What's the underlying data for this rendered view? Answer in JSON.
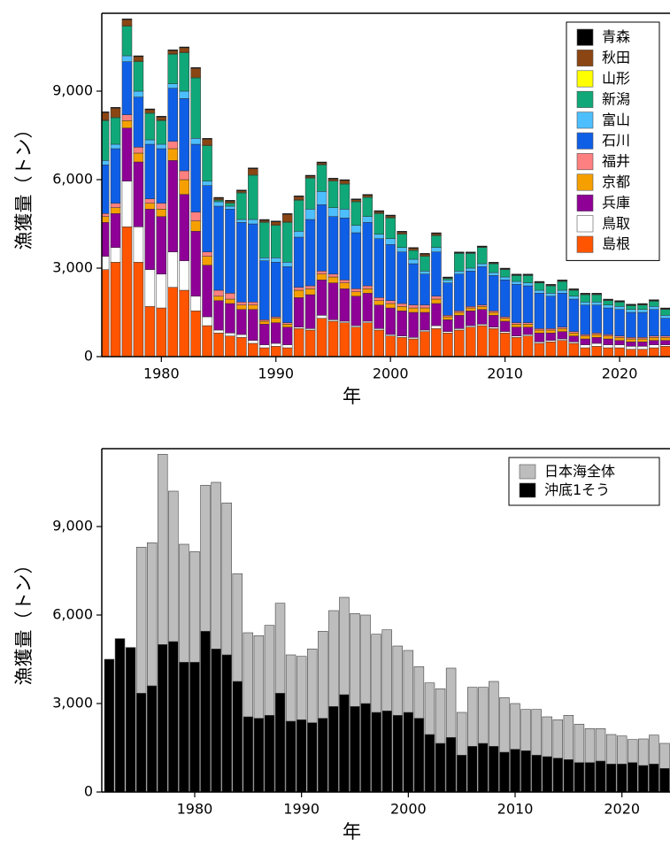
{
  "chart_data": [
    {
      "type": "stacked_bar",
      "ylabel": "漁獲量（トン）",
      "xlabel": "年",
      "legend": "upper right",
      "x": [
        1975,
        1976,
        1977,
        1978,
        1979,
        1980,
        1981,
        1982,
        1983,
        1984,
        1985,
        1986,
        1987,
        1988,
        1989,
        1990,
        1991,
        1992,
        1993,
        1994,
        1995,
        1996,
        1997,
        1998,
        1999,
        2000,
        2001,
        2002,
        2003,
        2004,
        2005,
        2006,
        2007,
        2008,
        2009,
        2010,
        2011,
        2012,
        2013,
        2014,
        2015,
        2016,
        2017,
        2018,
        2019,
        2020,
        2021,
        2022,
        2023,
        2024
      ],
      "xlim": [
        1974.8,
        2024.4
      ],
      "xticks": [
        1980,
        1990,
        2000,
        2010,
        2020
      ],
      "ylim": [
        0,
        11640
      ],
      "yticks": [
        0,
        {
          "value": 3000,
          "label": "3,000"
        },
        {
          "value": 6000,
          "label": "6,000"
        },
        {
          "value": 9000,
          "label": "9,000"
        }
      ],
      "series": [
        {
          "name": "島根",
          "color": "#ff5500",
          "values": [
            2950,
            3200,
            4400,
            3200,
            1700,
            1650,
            2350,
            2250,
            1550,
            1050,
            800,
            700,
            650,
            450,
            300,
            350,
            300,
            950,
            900,
            1300,
            1200,
            1150,
            1000,
            1150,
            900,
            700,
            650,
            600,
            850,
            950,
            800,
            900,
            1000,
            1050,
            950,
            800,
            650,
            700,
            450,
            500,
            550,
            450,
            300,
            350,
            300,
            300,
            250,
            250,
            300,
            350
          ]
        },
        {
          "name": "鳥取",
          "color": "#ffffff",
          "values": [
            450,
            500,
            1550,
            1200,
            1250,
            1150,
            1200,
            1000,
            500,
            300,
            100,
            100,
            100,
            100,
            100,
            100,
            100,
            50,
            50,
            100,
            50,
            50,
            50,
            50,
            50,
            50,
            50,
            50,
            50,
            100,
            50,
            50,
            50,
            50,
            50,
            50,
            50,
            50,
            50,
            50,
            50,
            50,
            100,
            100,
            100,
            100,
            100,
            100,
            100,
            50
          ]
        },
        {
          "name": "兵庫",
          "color": "#8e0096",
          "values": [
            1150,
            1150,
            1800,
            2200,
            2050,
            1950,
            3100,
            2250,
            2200,
            1750,
            1000,
            1000,
            850,
            1050,
            700,
            700,
            600,
            1000,
            1150,
            1200,
            1250,
            1100,
            1000,
            950,
            800,
            900,
            850,
            850,
            600,
            750,
            400,
            450,
            500,
            500,
            400,
            350,
            300,
            250,
            300,
            250,
            250,
            200,
            200,
            200,
            200,
            150,
            150,
            150,
            150,
            150
          ]
        },
        {
          "name": "京都",
          "color": "#f5a000",
          "values": [
            200,
            200,
            250,
            300,
            200,
            250,
            400,
            500,
            350,
            300,
            150,
            150,
            150,
            150,
            100,
            150,
            100,
            250,
            200,
            200,
            200,
            200,
            150,
            150,
            150,
            150,
            150,
            150,
            150,
            150,
            100,
            100,
            100,
            100,
            100,
            100,
            100,
            100,
            100,
            100,
            100,
            100,
            100,
            100,
            100,
            100,
            100,
            100,
            100,
            100
          ]
        },
        {
          "name": "福井",
          "color": "#ff8080",
          "values": [
            100,
            150,
            200,
            200,
            150,
            200,
            250,
            300,
            300,
            150,
            200,
            200,
            100,
            100,
            50,
            50,
            50,
            100,
            100,
            100,
            100,
            100,
            100,
            100,
            100,
            100,
            100,
            100,
            100,
            100,
            50,
            50,
            50,
            50,
            50,
            50,
            50,
            50,
            50,
            50,
            50,
            50,
            50,
            50,
            50,
            50,
            50,
            50,
            50,
            50
          ]
        },
        {
          "name": "石川",
          "color": "#0f5fe6",
          "values": [
            1650,
            1850,
            1800,
            1700,
            1850,
            1850,
            1800,
            2450,
            2300,
            2250,
            2850,
            2850,
            2700,
            2650,
            2000,
            1850,
            1900,
            1700,
            2250,
            2250,
            1950,
            2100,
            1900,
            2150,
            2000,
            1900,
            1750,
            1400,
            1050,
            1500,
            1100,
            1250,
            1200,
            1300,
            1200,
            1250,
            1300,
            1250,
            1200,
            1100,
            1150,
            1100,
            1000,
            950,
            900,
            900,
            850,
            850,
            900,
            600
          ]
        },
        {
          "name": "富山",
          "color": "#4dbfff",
          "values": [
            150,
            150,
            200,
            200,
            150,
            150,
            150,
            250,
            200,
            150,
            150,
            100,
            100,
            150,
            100,
            150,
            150,
            200,
            350,
            450,
            300,
            300,
            250,
            200,
            150,
            200,
            150,
            150,
            100,
            150,
            100,
            100,
            100,
            100,
            100,
            100,
            100,
            100,
            100,
            100,
            100,
            100,
            100,
            100,
            100,
            100,
            100,
            100,
            100,
            100
          ]
        },
        {
          "name": "新潟",
          "color": "#10a878",
          "values": [
            1350,
            900,
            1000,
            1000,
            900,
            800,
            1000,
            1300,
            2050,
            1200,
            50,
            100,
            900,
            1500,
            1200,
            1100,
            1350,
            1050,
            1050,
            900,
            900,
            850,
            800,
            650,
            700,
            700,
            450,
            300,
            500,
            400,
            50,
            600,
            500,
            550,
            300,
            250,
            200,
            250,
            250,
            250,
            300,
            200,
            250,
            250,
            150,
            150,
            130,
            150,
            180,
            200
          ]
        },
        {
          "name": "山形",
          "color": "#ffff00",
          "values": [
            20,
            20,
            20,
            20,
            20,
            20,
            20,
            20,
            20,
            20,
            20,
            20,
            20,
            20,
            20,
            20,
            20,
            20,
            20,
            20,
            20,
            20,
            20,
            20,
            20,
            20,
            20,
            20,
            20,
            20,
            0,
            0,
            0,
            0,
            0,
            0,
            0,
            0,
            0,
            0,
            0,
            0,
            0,
            0,
            0,
            0,
            0,
            0,
            0,
            0
          ]
        },
        {
          "name": "秋田",
          "color": "#8b4513",
          "values": [
            250,
            300,
            200,
            150,
            100,
            100,
            100,
            150,
            300,
            200,
            50,
            50,
            50,
            200,
            50,
            100,
            250,
            100,
            50,
            50,
            50,
            100,
            50,
            50,
            50,
            50,
            50,
            50,
            50,
            50,
            20,
            20,
            20,
            20,
            20,
            20,
            20,
            20,
            20,
            20,
            20,
            20,
            20,
            20,
            20,
            20,
            20,
            20,
            20,
            20
          ]
        },
        {
          "name": "青森",
          "color": "#000000",
          "values": [
            30,
            30,
            30,
            30,
            30,
            30,
            30,
            30,
            30,
            30,
            30,
            30,
            30,
            30,
            30,
            30,
            30,
            30,
            30,
            30,
            30,
            30,
            30,
            30,
            30,
            30,
            30,
            30,
            30,
            30,
            30,
            30,
            30,
            30,
            30,
            30,
            30,
            30,
            30,
            30,
            30,
            30,
            30,
            30,
            30,
            30,
            30,
            30,
            30,
            30
          ]
        }
      ]
    },
    {
      "type": "bar",
      "ylabel": "漁獲量（トン）",
      "xlabel": "年",
      "legend": "upper right",
      "x": [
        1972,
        1973,
        1974,
        1975,
        1976,
        1977,
        1978,
        1979,
        1980,
        1981,
        1982,
        1983,
        1984,
        1985,
        1986,
        1987,
        1988,
        1989,
        1990,
        1991,
        1992,
        1993,
        1994,
        1995,
        1996,
        1997,
        1998,
        1999,
        2000,
        2001,
        2002,
        2003,
        2004,
        2005,
        2006,
        2007,
        2008,
        2009,
        2010,
        2011,
        2012,
        2013,
        2014,
        2015,
        2016,
        2017,
        2018,
        2019,
        2020,
        2021,
        2022,
        2023,
        2024
      ],
      "xlim": [
        1971.3,
        2024.5
      ],
      "xticks": [
        1980,
        1990,
        2000,
        2010,
        2020
      ],
      "ylim": [
        0,
        11640
      ],
      "yticks": [
        0,
        {
          "value": 3000,
          "label": "3,000"
        },
        {
          "value": 6000,
          "label": "6,000"
        },
        {
          "value": 9000,
          "label": "9,000"
        }
      ],
      "series": [
        {
          "name": "日本海全体",
          "color": "#bdbdbd",
          "values": [
            null,
            null,
            null,
            8300,
            8450,
            11450,
            10200,
            8400,
            8150,
            10400,
            10500,
            9800,
            7400,
            5400,
            5300,
            5650,
            6400,
            4650,
            4600,
            4850,
            5450,
            6150,
            6600,
            6050,
            6000,
            5350,
            5500,
            4950,
            4800,
            4250,
            3700,
            3500,
            4200,
            2700,
            3550,
            3550,
            3750,
            3200,
            3000,
            2800,
            2800,
            2550,
            2450,
            2600,
            2300,
            2150,
            2150,
            1950,
            1900,
            1780,
            1800,
            1930,
            1650
          ]
        },
        {
          "name": "沖底1そう",
          "color": "#000000",
          "values": [
            4500,
            5200,
            4900,
            3350,
            3600,
            5000,
            5100,
            4400,
            4400,
            5450,
            4850,
            4650,
            3750,
            2550,
            2500,
            2600,
            3350,
            2400,
            2450,
            2350,
            2500,
            2900,
            3300,
            2900,
            3000,
            2700,
            2750,
            2600,
            2700,
            2500,
            1950,
            1650,
            1850,
            1250,
            1550,
            1650,
            1550,
            1350,
            1450,
            1400,
            1250,
            1200,
            1150,
            1100,
            1000,
            1000,
            1050,
            950,
            950,
            1000,
            900,
            950,
            800
          ]
        }
      ]
    }
  ]
}
